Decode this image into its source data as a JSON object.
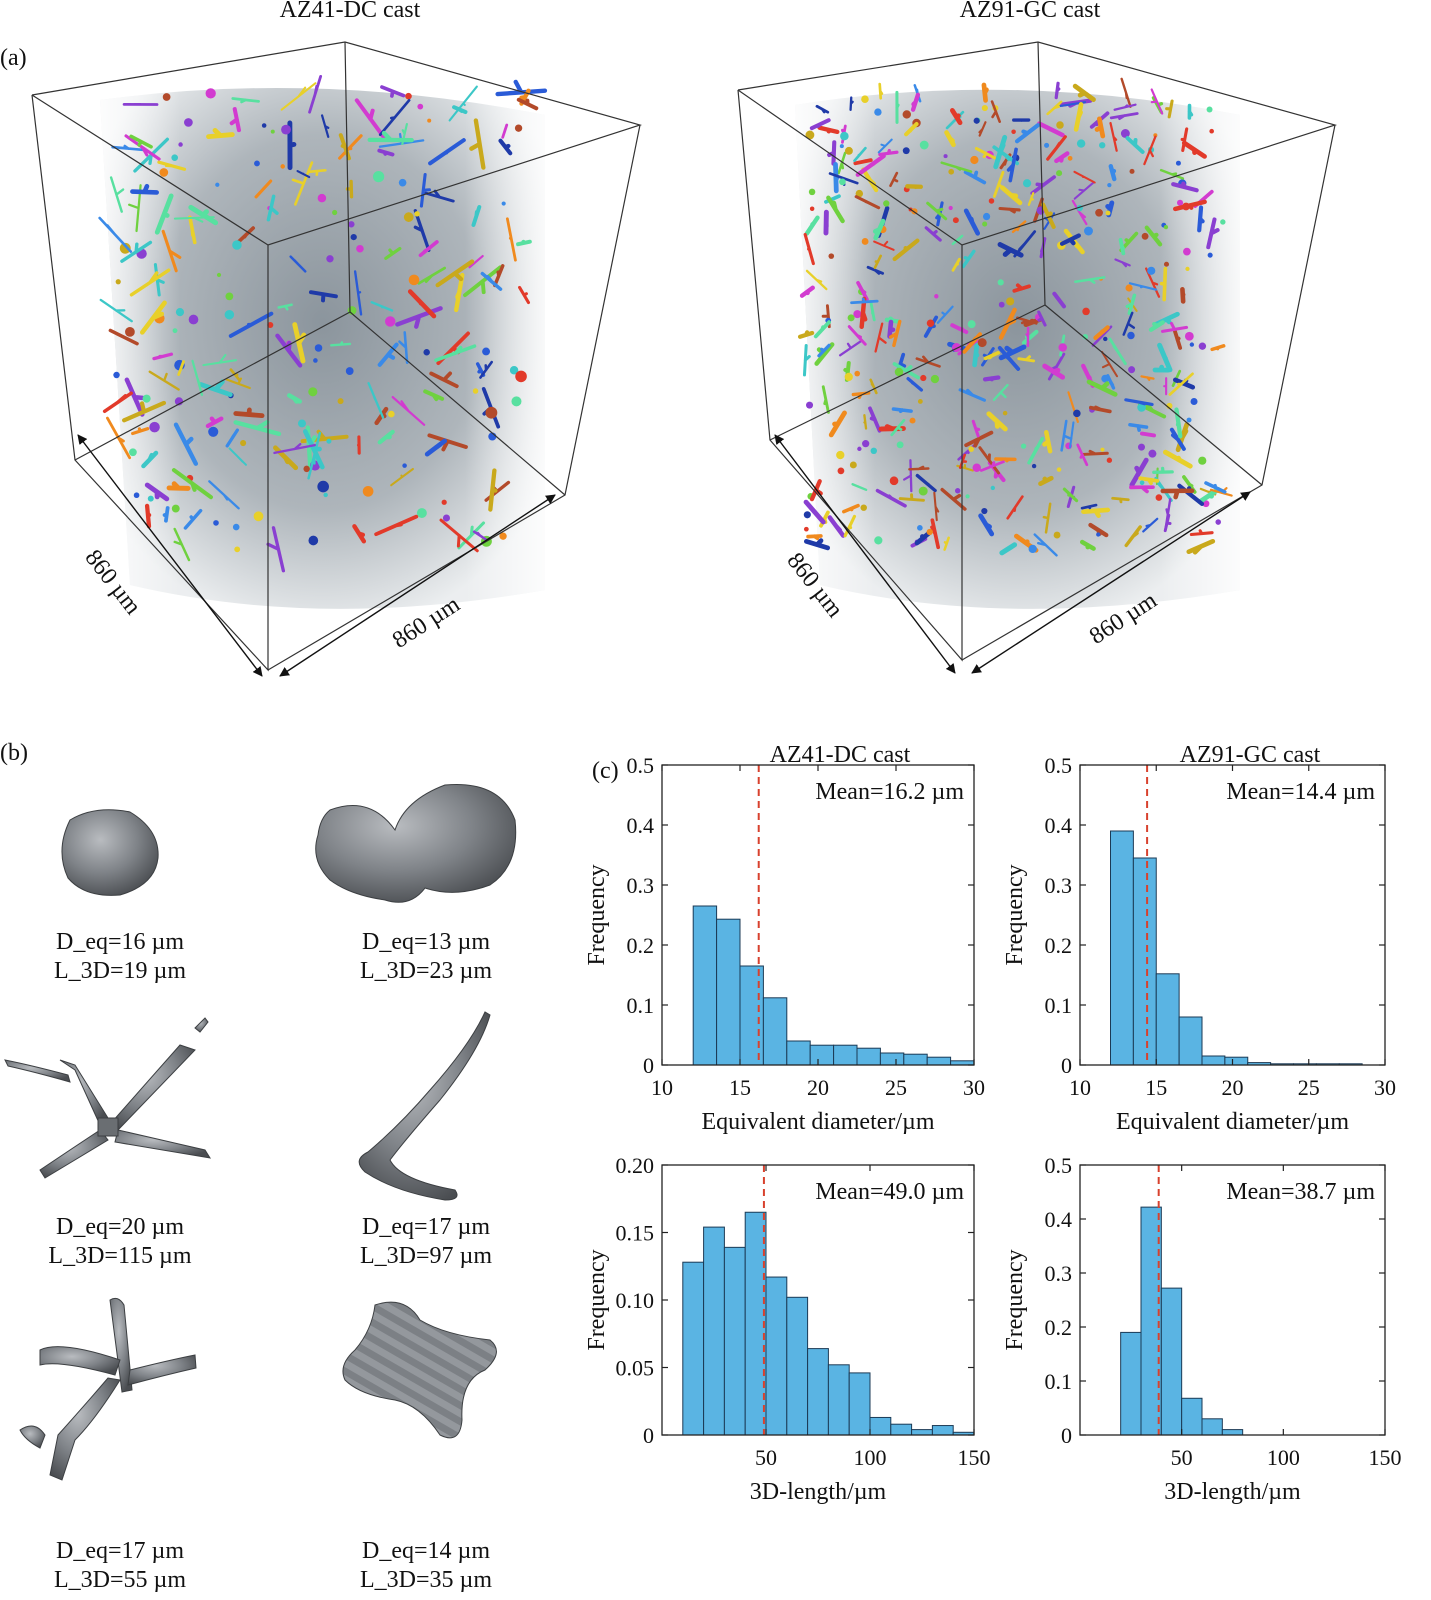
{
  "panel_a": {
    "label": "(a)",
    "left": {
      "title": "AZ41-DC cast",
      "dim_front": "860 µm",
      "dim_side": "860 µm"
    },
    "right": {
      "title": "AZ91-GC cast",
      "dim_front": "860 µm",
      "dim_side": "860 µm"
    },
    "particle_colors": [
      "#e8d02a",
      "#2a5bd7",
      "#8a3fd1",
      "#e23a2a",
      "#3cc7c7",
      "#f08a1e",
      "#6fd13f",
      "#c9a91c",
      "#d23bd0",
      "#3a8ae8",
      "#b34a2a",
      "#1f3aa8",
      "#58e0a0"
    ]
  },
  "panel_b": {
    "label": "(b)",
    "particles": [
      {
        "deq": "D_eq=16 µm",
        "l3d": "L_3D=19 µm"
      },
      {
        "deq": "D_eq=13 µm",
        "l3d": "L_3D=23 µm"
      },
      {
        "deq": "D_eq=20 µm",
        "l3d": "L_3D=115 µm"
      },
      {
        "deq": "D_eq=17 µm",
        "l3d": "L_3D=97 µm"
      },
      {
        "deq": "D_eq=17 µm",
        "l3d": "L_3D=55 µm"
      },
      {
        "deq": "D_eq=14 µm",
        "l3d": "L_3D=35 µm"
      }
    ]
  },
  "panel_c": {
    "label": "(c)",
    "title_left": "AZ41-DC cast",
    "title_right": "AZ91-GC cast"
  },
  "chart_data": [
    {
      "type": "bar",
      "title": "AZ41-DC cast",
      "xlabel": "Equivalent diameter/µm",
      "ylabel": "Frequency",
      "xlim": [
        10,
        30
      ],
      "ylim": [
        0,
        0.5
      ],
      "xticks": [
        "10",
        "15",
        "20",
        "25",
        "30"
      ],
      "yticks": [
        "0",
        "0.1",
        "0.2",
        "0.3",
        "0.4",
        "0.5"
      ],
      "bin_edges": [
        12,
        13.5,
        15,
        16.5,
        18,
        19.5,
        21,
        22.5,
        24,
        25.5,
        27,
        28.5,
        30
      ],
      "values": [
        0.265,
        0.243,
        0.165,
        0.112,
        0.04,
        0.033,
        0.033,
        0.028,
        0.02,
        0.018,
        0.013,
        0.007
      ],
      "mean": 16.2,
      "annotation": "Mean=16.2 µm"
    },
    {
      "type": "bar",
      "title": "AZ91-GC cast",
      "xlabel": "Equivalent diameter/µm",
      "ylabel": "Frequency",
      "xlim": [
        10,
        30
      ],
      "ylim": [
        0,
        0.5
      ],
      "xticks": [
        "10",
        "15",
        "20",
        "25",
        "30"
      ],
      "yticks": [
        "0",
        "0.1",
        "0.2",
        "0.3",
        "0.4",
        "0.5"
      ],
      "bin_edges": [
        12,
        13.5,
        15,
        16.5,
        18,
        19.5,
        21,
        22.5,
        24,
        25.5,
        27,
        28.5
      ],
      "values": [
        0.39,
        0.345,
        0.152,
        0.08,
        0.015,
        0.013,
        0.004,
        0.002,
        0.002,
        0.002,
        0.002
      ],
      "mean": 14.4,
      "annotation": "Mean=14.4 µm"
    },
    {
      "type": "bar",
      "title": "",
      "xlabel": "3D-length/µm",
      "ylabel": "Frequency",
      "xlim": [
        0,
        150
      ],
      "ylim": [
        0,
        0.2
      ],
      "xticks": [
        "50",
        "100",
        "150"
      ],
      "yticks": [
        "0",
        "0.05",
        "0.10",
        "0.15",
        "0.20"
      ],
      "bin_edges": [
        10,
        20,
        30,
        40,
        50,
        60,
        70,
        80,
        90,
        100,
        110,
        120,
        130,
        140,
        150
      ],
      "values": [
        0.128,
        0.154,
        0.139,
        0.165,
        0.117,
        0.102,
        0.064,
        0.052,
        0.046,
        0.013,
        0.008,
        0.004,
        0.007,
        0.002
      ],
      "mean": 49.0,
      "annotation": "Mean=49.0 µm"
    },
    {
      "type": "bar",
      "title": "",
      "xlabel": "3D-length/µm",
      "ylabel": "Frequency",
      "xlim": [
        0,
        150
      ],
      "ylim": [
        0,
        0.5
      ],
      "xticks": [
        "50",
        "100",
        "150"
      ],
      "yticks": [
        "0",
        "0.1",
        "0.2",
        "0.3",
        "0.4",
        "0.5"
      ],
      "bin_edges": [
        20,
        30,
        40,
        50,
        60,
        70,
        80
      ],
      "values": [
        0.19,
        0.422,
        0.272,
        0.068,
        0.03,
        0.01
      ],
      "mean": 38.7,
      "annotation": "Mean=38.7 µm"
    }
  ]
}
